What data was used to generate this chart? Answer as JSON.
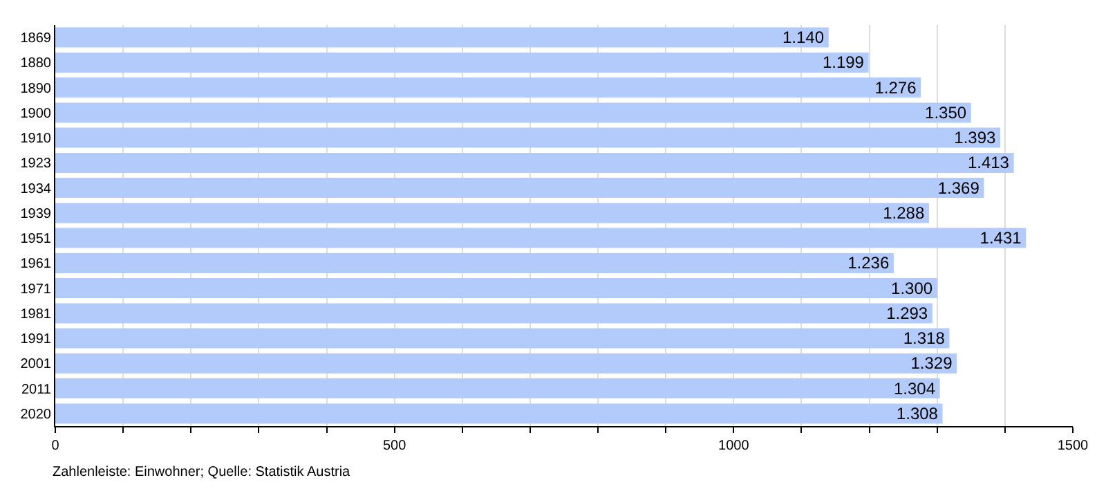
{
  "chart_data": {
    "type": "bar",
    "orientation": "horizontal",
    "categories": [
      "1869",
      "1880",
      "1890",
      "1900",
      "1910",
      "1923",
      "1934",
      "1939",
      "1951",
      "1961",
      "1971",
      "1981",
      "1991",
      "2001",
      "2011",
      "2020"
    ],
    "values": [
      1140,
      1199,
      1276,
      1350,
      1393,
      1413,
      1369,
      1288,
      1431,
      1236,
      1300,
      1293,
      1318,
      1329,
      1304,
      1308
    ],
    "value_labels": [
      "1.140",
      "1.199",
      "1.276",
      "1.350",
      "1.393",
      "1.413",
      "1.369",
      "1.288",
      "1.431",
      "1.236",
      "1.300",
      "1.293",
      "1.318",
      "1.329",
      "1.304",
      "1.308"
    ],
    "color": "#b3cbfb",
    "xlim": [
      0,
      1500
    ],
    "xticks": [
      0,
      {
        "value": 100,
        "label": null
      },
      {
        "value": 200,
        "label": null
      },
      {
        "value": 300,
        "label": null
      },
      {
        "value": 400,
        "label": null
      },
      500,
      {
        "value": 600,
        "label": null
      },
      {
        "value": 700,
        "label": null
      },
      {
        "value": 800,
        "label": null
      },
      {
        "value": 900,
        "label": null
      },
      1000,
      {
        "value": 1100,
        "label": null
      },
      {
        "value": 1200,
        "label": null
      },
      {
        "value": 1300,
        "label": null
      },
      {
        "value": 1400,
        "label": null
      },
      1500
    ],
    "grid": "x",
    "annotations": [
      "Zahlenleiste: Einwohner; Quelle: Statistik Austria"
    ]
  }
}
